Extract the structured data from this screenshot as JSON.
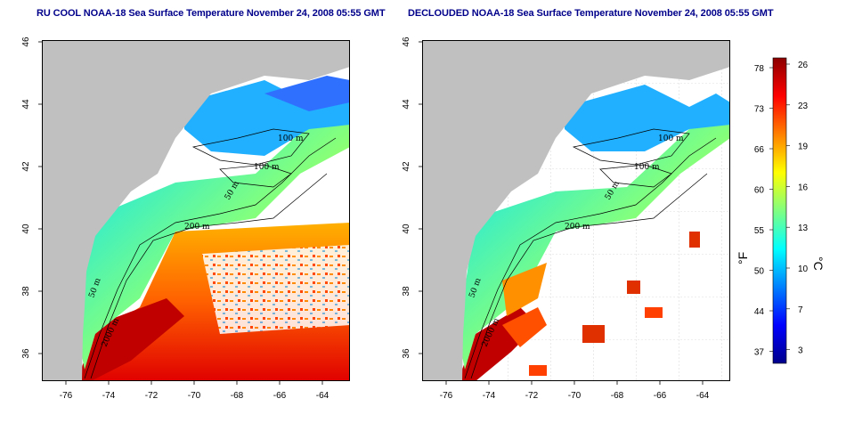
{
  "titles": {
    "left": "RU COOL NOAA-18 Sea Surface Temperature November 24, 2008 05:55 GMT",
    "right": "DECLOUDED NOAA-18 Sea Surface Temperature November 24, 2008 05:55 GMT"
  },
  "maps": {
    "lon_ticks": [
      "-76",
      "-74",
      "-72",
      "-70",
      "-68",
      "-66",
      "-64"
    ],
    "lat_ticks": [
      "46",
      "44",
      "42",
      "40",
      "38",
      "36"
    ],
    "contours_left": [
      "100 m",
      "100 m",
      "50 m",
      "200 m",
      "50 m",
      "2000 m"
    ],
    "contours_right": [
      "100 m",
      "100 m",
      "50 m",
      "200 m",
      "50 m",
      "2000 m"
    ]
  },
  "colorbar": {
    "fahrenheit_unit": "°F",
    "celsius_unit": "°C",
    "fahrenheit_ticks": [
      "78",
      "73",
      "66",
      "60",
      "55",
      "50",
      "44",
      "37"
    ],
    "celsius_ticks": [
      "26",
      "23",
      "19",
      "16",
      "13",
      "10",
      "7",
      "3"
    ],
    "colors": [
      "#00008b",
      "#0000ff",
      "#0080ff",
      "#00ffff",
      "#80ff80",
      "#ffff00",
      "#ff8000",
      "#ff0000",
      "#8b0000"
    ]
  },
  "colors": {
    "land": "#c0c0c0",
    "title": "#00008b"
  }
}
